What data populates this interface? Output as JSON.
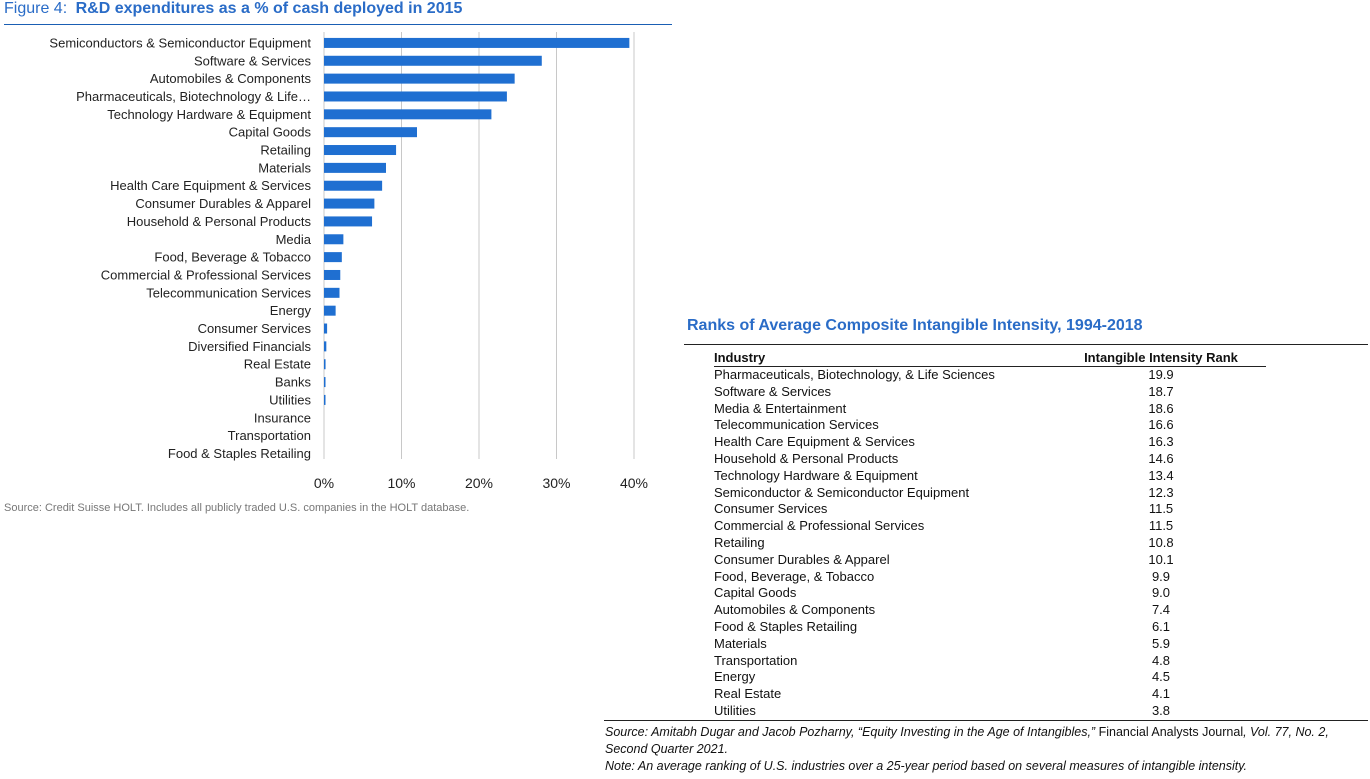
{
  "figure": {
    "prefix": "Figure 4:",
    "title": "R&D expenditures as a % of cash deployed in 2015",
    "source": "Source: Credit Suisse HOLT.  Includes all publicly traded U.S. companies in the HOLT database."
  },
  "chart_data": {
    "type": "bar",
    "orientation": "horizontal",
    "title": "R&D expenditures as a % of cash deployed in 2015",
    "categories": [
      "Semiconductors & Semiconductor Equipment",
      "Software & Services",
      "Automobiles & Components",
      "Pharmaceuticals, Biotechnology & Life…",
      "Technology Hardware & Equipment",
      "Capital Goods",
      "Retailing",
      "Materials",
      "Health Care Equipment & Services",
      "Consumer Durables & Apparel",
      "Household & Personal Products",
      "Media",
      "Food, Beverage & Tobacco",
      "Commercial  & Professional Services",
      "Telecommunication Services",
      "Energy",
      "Consumer Services",
      "Diversified Financials",
      "Real Estate",
      "Banks",
      "Utilities",
      "Insurance",
      "Transportation",
      "Food & Staples Retailing"
    ],
    "values": [
      39.4,
      28.1,
      24.6,
      23.6,
      21.6,
      12.0,
      9.3,
      8.0,
      7.5,
      6.5,
      6.2,
      2.5,
      2.3,
      2.1,
      2.0,
      1.5,
      0.4,
      0.3,
      0.2,
      0.15,
      0.1,
      0.0,
      0.0,
      0.0
    ],
    "xlim": [
      0,
      40
    ],
    "xticks": [
      "0%",
      "10%",
      "20%",
      "30%",
      "40%"
    ],
    "grid": true,
    "bar_color": "#1f6fd1"
  },
  "ranks": {
    "title": "Ranks of Average Composite Intangible Intensity, 1994-2018",
    "columns": [
      "Industry",
      "Intangible Intensity Rank"
    ],
    "rows": [
      [
        "Pharmaceuticals, Biotechnology, & Life Sciences",
        "19.9"
      ],
      [
        "Software & Services",
        "18.7"
      ],
      [
        "Media & Entertainment",
        "18.6"
      ],
      [
        "Telecommunication Services",
        "16.6"
      ],
      [
        "Health Care Equipment & Services",
        "16.3"
      ],
      [
        "Household & Personal Products",
        "14.6"
      ],
      [
        "Technology Hardware & Equipment",
        "13.4"
      ],
      [
        "Semiconductor & Semiconductor Equipment",
        "12.3"
      ],
      [
        "Consumer Services",
        "11.5"
      ],
      [
        "Commercial & Professional Services",
        "11.5"
      ],
      [
        "Retailing",
        "10.8"
      ],
      [
        "Consumer Durables & Apparel",
        "10.1"
      ],
      [
        "Food, Beverage, & Tobacco",
        "9.9"
      ],
      [
        "Capital Goods",
        "9.0"
      ],
      [
        "Automobiles & Components",
        "7.4"
      ],
      [
        "Food & Staples Retailing",
        "6.1"
      ],
      [
        "Materials",
        "5.9"
      ],
      [
        "Transportation",
        "4.8"
      ],
      [
        "Energy",
        "4.5"
      ],
      [
        "Real Estate",
        "4.1"
      ],
      [
        "Utilities",
        "3.8"
      ]
    ],
    "source_italic": "Source: Amitabh Dugar and Jacob Pozharny, “Equity Investing in the Age of Intangibles,”",
    "source_journal": " Financial Analysts Journal",
    "source_vol": ", Vol. 77, No. 2, Second Quarter 2021.",
    "note": "Note: An average ranking of U.S. industries over a 25-year period based on several measures of intangible intensity."
  }
}
